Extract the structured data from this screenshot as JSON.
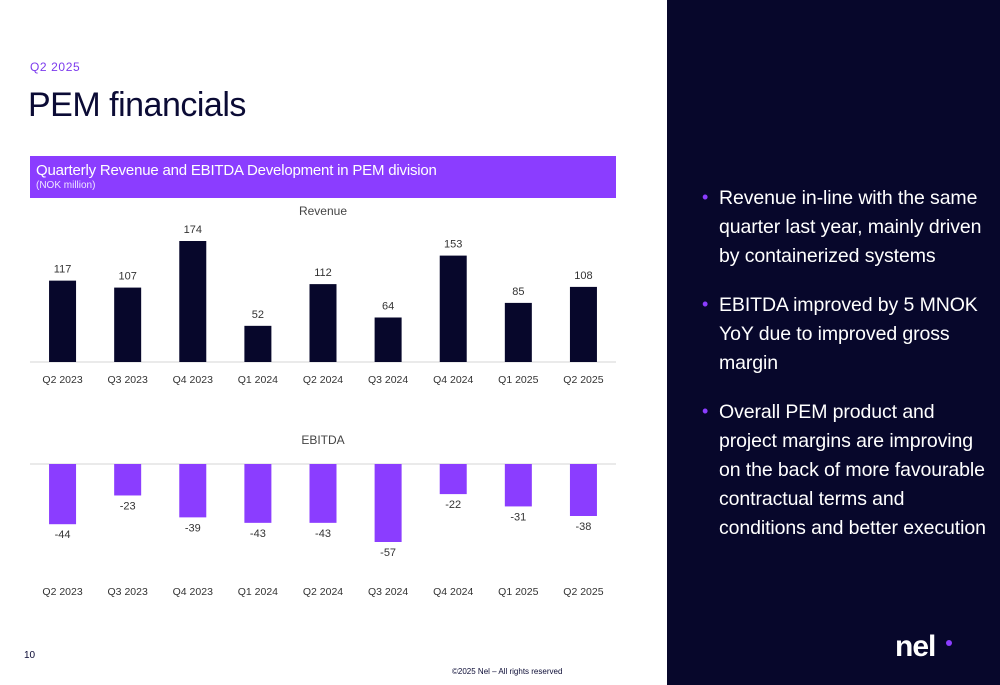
{
  "header": {
    "overline": "Q2 2025",
    "title": "PEM financials"
  },
  "banner": {
    "title": "Quarterly Revenue and EBITDA Development in PEM division",
    "subtitle": "(NOK million)"
  },
  "chart_data": [
    {
      "type": "bar",
      "title": "Revenue",
      "categories": [
        "Q2 2023",
        "Q3 2023",
        "Q4 2023",
        "Q1 2024",
        "Q2 2024",
        "Q3 2024",
        "Q4 2024",
        "Q1 2025",
        "Q2 2025"
      ],
      "values": [
        117,
        107,
        174,
        52,
        112,
        64,
        153,
        85,
        108
      ],
      "color": "#07072b",
      "ylim": [
        0,
        174
      ],
      "grid": false
    },
    {
      "type": "bar",
      "title": "EBITDA",
      "categories": [
        "Q2 2023",
        "Q3 2023",
        "Q4 2023",
        "Q1 2024",
        "Q2 2024",
        "Q3 2024",
        "Q4 2024",
        "Q1 2025",
        "Q2 2025"
      ],
      "values": [
        -44,
        -23,
        -39,
        -43,
        -43,
        -57,
        -22,
        -31,
        -38
      ],
      "color": "#8b3dff",
      "ylim": [
        -57,
        0
      ],
      "grid": false
    }
  ],
  "bullets": [
    "Revenue in-line with the same quarter last year, mainly  driven by containerized systems",
    "EBITDA improved by 5 MNOK YoY due to improved gross margin",
    "Overall PEM product and project margins are improving on the back of more favourable contractual terms and conditions and better execution"
  ],
  "bullet_symbol": "•",
  "page_number": "10",
  "footer": "©2025 Nel – All rights reserved",
  "logo_text": "nel",
  "colors": {
    "accent": "#8b3dff",
    "navy": "#07072b"
  }
}
